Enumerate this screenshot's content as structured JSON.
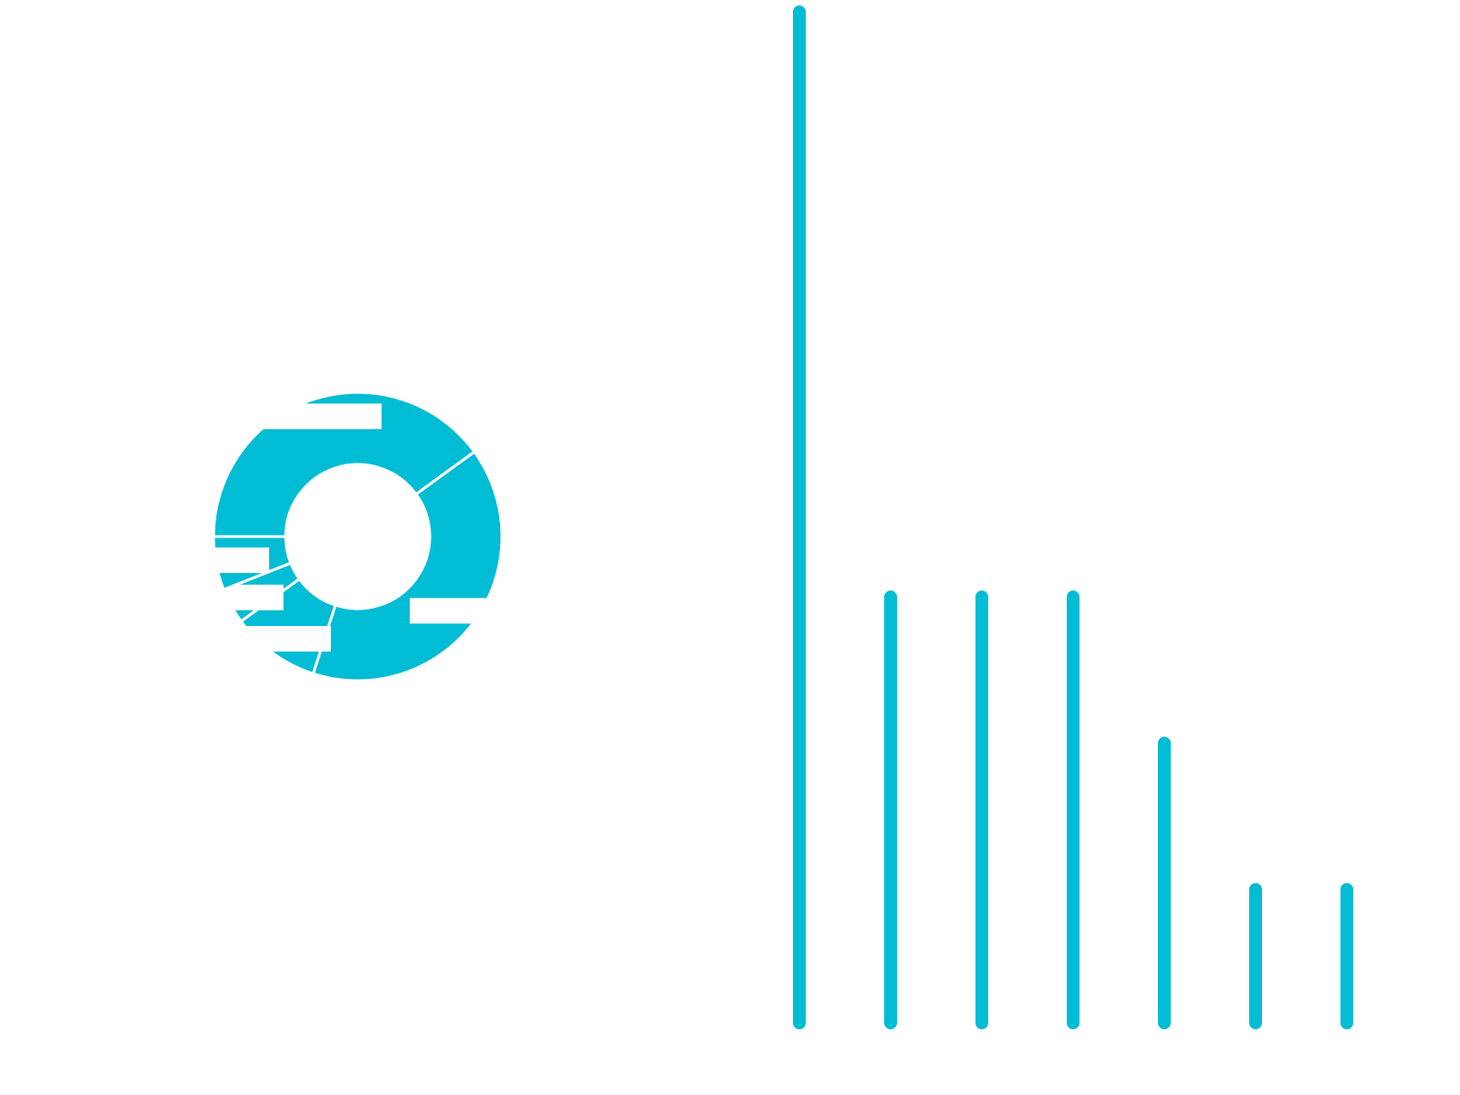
{
  "accent_color": "#00BCD4",
  "background_color": "#FFFFFF",
  "chart_data": [
    {
      "type": "pie",
      "variant": "donut",
      "title": "",
      "legend": "none",
      "label_placement": "on-slice",
      "slices": [
        {
          "label": "",
          "value": 40
        },
        {
          "label": "",
          "value": 10
        },
        {
          "label": "",
          "value": 4
        },
        {
          "label": "",
          "value": 6
        },
        {
          "label": "",
          "value": 40
        }
      ],
      "color": "#00BCD4"
    },
    {
      "type": "bar",
      "style": "rounded-thin-vertical",
      "title": "",
      "xlabel": "",
      "ylabel": "",
      "grid": false,
      "legend": "none",
      "categories": [
        "",
        "",
        "",
        "",
        "",
        "",
        ""
      ],
      "values": [
        7,
        3,
        3,
        3,
        2,
        1,
        1
      ],
      "ylim": [
        0,
        7
      ],
      "color": "#00BCD4"
    }
  ]
}
